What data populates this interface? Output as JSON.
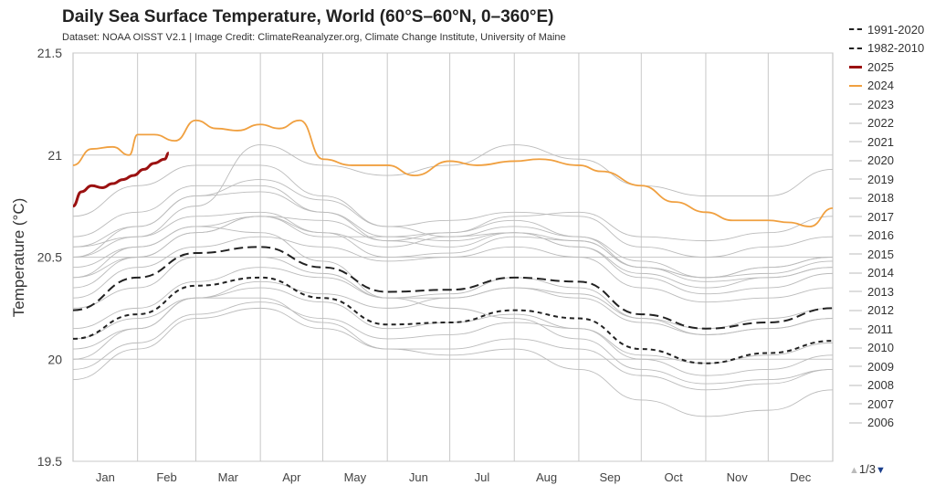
{
  "title": "Daily Sea Surface Temperature, World (60°S–60°N, 0–360°E)",
  "subtitle": "Dataset: NOAA OISST V2.1 | Image Credit: ClimateReanalyzer.org, Climate Change Institute, University of Maine",
  "legend_pager": {
    "label": "1/3",
    "up_icon": "triangle-up-icon",
    "down_icon": "triangle-down-icon"
  },
  "chart_data": {
    "type": "line",
    "ylabel": "Temperature (°C)",
    "ylim": [
      19.5,
      21.5
    ],
    "yticks": [
      "19.5",
      "20",
      "20.5",
      "21",
      "21.5"
    ],
    "xlim": [
      1,
      366
    ],
    "month_labels": [
      "Jan",
      "Feb",
      "Mar",
      "Apr",
      "May",
      "Jun",
      "Jul",
      "Aug",
      "Sep",
      "Oct",
      "Nov",
      "Dec"
    ],
    "grid": true,
    "legend_placement": "right",
    "series": [
      {
        "name": "1991-2020",
        "color": "#222222",
        "style": "long-dash",
        "days": [
          1,
          32,
          60,
          91,
          121,
          152,
          182,
          213,
          244,
          274,
          305,
          335,
          366
        ],
        "values": [
          20.24,
          20.4,
          20.52,
          20.55,
          20.45,
          20.33,
          20.34,
          20.4,
          20.38,
          20.22,
          20.15,
          20.18,
          20.25
        ]
      },
      {
        "name": "1982-2010",
        "color": "#222222",
        "style": "short-dash",
        "days": [
          1,
          32,
          60,
          91,
          121,
          152,
          182,
          213,
          244,
          274,
          305,
          335,
          366
        ],
        "values": [
          20.1,
          20.22,
          20.36,
          20.4,
          20.3,
          20.17,
          20.18,
          20.24,
          20.2,
          20.05,
          19.98,
          20.03,
          20.09
        ]
      },
      {
        "name": "2025",
        "color": "#9b1111",
        "style": "bold",
        "days": [
          1,
          5,
          10,
          15,
          20,
          25,
          30,
          35,
          40,
          45,
          47
        ],
        "values": [
          20.75,
          20.82,
          20.85,
          20.84,
          20.86,
          20.88,
          20.9,
          20.93,
          20.96,
          20.98,
          21.01
        ]
      },
      {
        "name": "2024",
        "color": "#f0a040",
        "style": "solid",
        "days": [
          1,
          10,
          20,
          28,
          32,
          40,
          50,
          60,
          70,
          80,
          91,
          100,
          110,
          121,
          135,
          152,
          165,
          182,
          195,
          213,
          225,
          244,
          255,
          274,
          290,
          305,
          318,
          335,
          345,
          355,
          366
        ],
        "values": [
          20.95,
          21.03,
          21.04,
          21.0,
          21.1,
          21.1,
          21.07,
          21.17,
          21.13,
          21.12,
          21.15,
          21.13,
          21.17,
          20.98,
          20.95,
          20.95,
          20.9,
          20.97,
          20.95,
          20.97,
          20.98,
          20.95,
          20.92,
          20.85,
          20.77,
          20.72,
          20.68,
          20.68,
          20.67,
          20.65,
          20.74
        ]
      },
      {
        "name": "2023",
        "color": "#bbbbbb",
        "style": "thin",
        "days": [
          1,
          32,
          60,
          91,
          121,
          152,
          182,
          213,
          244,
          274,
          305,
          335,
          366
        ],
        "values": [
          20.55,
          20.6,
          20.75,
          21.05,
          20.95,
          20.9,
          20.95,
          21.05,
          20.98,
          20.85,
          20.8,
          20.8,
          20.93
        ]
      },
      {
        "name": "2022",
        "color": "#bbbbbb",
        "style": "thin",
        "days": [
          1,
          32,
          60,
          91,
          121,
          152,
          182,
          213,
          244,
          274,
          305,
          335,
          366
        ],
        "values": [
          20.5,
          20.6,
          20.7,
          20.72,
          20.62,
          20.55,
          20.6,
          20.62,
          20.58,
          20.45,
          20.4,
          20.42,
          20.48
        ]
      },
      {
        "name": "2021",
        "color": "#bbbbbb",
        "style": "thin",
        "days": [
          1,
          32,
          60,
          91,
          121,
          152,
          182,
          213,
          244,
          274,
          305,
          335,
          366
        ],
        "values": [
          20.45,
          20.55,
          20.65,
          20.7,
          20.6,
          20.6,
          20.62,
          20.68,
          20.6,
          20.48,
          20.4,
          20.45,
          20.5
        ]
      },
      {
        "name": "2020",
        "color": "#bbbbbb",
        "style": "thin",
        "days": [
          1,
          32,
          60,
          91,
          121,
          152,
          182,
          213,
          244,
          274,
          305,
          335,
          366
        ],
        "values": [
          20.6,
          20.72,
          20.85,
          20.85,
          20.72,
          20.6,
          20.58,
          20.62,
          20.55,
          20.42,
          20.35,
          20.4,
          20.45
        ]
      },
      {
        "name": "2019",
        "color": "#bbbbbb",
        "style": "thin",
        "days": [
          1,
          32,
          60,
          91,
          121,
          152,
          182,
          213,
          244,
          274,
          305,
          335,
          366
        ],
        "values": [
          20.5,
          20.65,
          20.8,
          20.88,
          20.78,
          20.65,
          20.68,
          20.72,
          20.7,
          20.55,
          20.5,
          20.55,
          20.6
        ]
      },
      {
        "name": "2018",
        "color": "#bbbbbb",
        "style": "thin",
        "days": [
          1,
          32,
          60,
          91,
          121,
          152,
          182,
          213,
          244,
          274,
          305,
          335,
          366
        ],
        "values": [
          20.4,
          20.5,
          20.62,
          20.7,
          20.62,
          20.5,
          20.52,
          20.6,
          20.58,
          20.45,
          20.4,
          20.45,
          20.5
        ]
      },
      {
        "name": "2017",
        "color": "#bbbbbb",
        "style": "thin",
        "days": [
          1,
          32,
          60,
          91,
          121,
          152,
          182,
          213,
          244,
          274,
          305,
          335,
          366
        ],
        "values": [
          20.55,
          20.65,
          20.8,
          20.82,
          20.72,
          20.58,
          20.55,
          20.62,
          20.55,
          20.4,
          20.32,
          20.35,
          20.42
        ]
      },
      {
        "name": "2016",
        "color": "#bbbbbb",
        "style": "thin",
        "days": [
          1,
          32,
          60,
          91,
          121,
          152,
          182,
          213,
          244,
          274,
          305,
          335,
          366
        ],
        "values": [
          20.7,
          20.85,
          20.95,
          20.95,
          20.8,
          20.65,
          20.6,
          20.65,
          20.6,
          20.45,
          20.38,
          20.4,
          20.45
        ]
      },
      {
        "name": "2015",
        "color": "#bbbbbb",
        "style": "thin",
        "days": [
          1,
          32,
          60,
          91,
          121,
          152,
          182,
          213,
          244,
          274,
          305,
          335,
          366
        ],
        "values": [
          20.35,
          20.5,
          20.62,
          20.7,
          20.68,
          20.58,
          20.62,
          20.7,
          20.72,
          20.6,
          20.58,
          20.62,
          20.7
        ]
      },
      {
        "name": "2014",
        "color": "#bbbbbb",
        "style": "thin",
        "days": [
          1,
          32,
          60,
          91,
          121,
          152,
          182,
          213,
          244,
          274,
          305,
          335,
          366
        ],
        "values": [
          20.3,
          20.45,
          20.55,
          20.6,
          20.55,
          20.48,
          20.5,
          20.55,
          20.5,
          20.35,
          20.28,
          20.3,
          20.35
        ]
      },
      {
        "name": "2013",
        "color": "#bbbbbb",
        "style": "thin",
        "days": [
          1,
          32,
          60,
          91,
          121,
          152,
          182,
          213,
          244,
          274,
          305,
          335,
          366
        ],
        "values": [
          20.25,
          20.35,
          20.5,
          20.5,
          20.42,
          20.3,
          20.3,
          20.35,
          20.32,
          20.2,
          20.15,
          20.2,
          20.25
        ]
      },
      {
        "name": "2012",
        "color": "#bbbbbb",
        "style": "thin",
        "days": [
          1,
          32,
          60,
          91,
          121,
          152,
          182,
          213,
          244,
          274,
          305,
          335,
          366
        ],
        "values": [
          20.15,
          20.25,
          20.38,
          20.45,
          20.4,
          20.3,
          20.32,
          20.4,
          20.35,
          20.2,
          20.12,
          20.15,
          20.2
        ]
      },
      {
        "name": "2011",
        "color": "#bbbbbb",
        "style": "thin",
        "days": [
          1,
          32,
          60,
          91,
          121,
          152,
          182,
          213,
          244,
          274,
          305,
          335,
          366
        ],
        "values": [
          20.0,
          20.15,
          20.3,
          20.35,
          20.28,
          20.15,
          20.18,
          20.22,
          20.15,
          20.0,
          19.92,
          19.95,
          20.02
        ]
      },
      {
        "name": "2010",
        "color": "#bbbbbb",
        "style": "thin",
        "days": [
          1,
          32,
          60,
          91,
          121,
          152,
          182,
          213,
          244,
          274,
          305,
          335,
          366
        ],
        "values": [
          20.4,
          20.55,
          20.65,
          20.62,
          20.48,
          20.3,
          20.25,
          20.2,
          20.1,
          19.95,
          19.88,
          19.9,
          19.95
        ]
      },
      {
        "name": "2009",
        "color": "#bbbbbb",
        "style": "thin",
        "days": [
          1,
          32,
          60,
          91,
          121,
          152,
          182,
          213,
          244,
          274,
          305,
          335,
          366
        ],
        "values": [
          20.05,
          20.15,
          20.3,
          20.38,
          20.32,
          20.25,
          20.3,
          20.35,
          20.3,
          20.18,
          20.12,
          20.15,
          20.2
        ]
      },
      {
        "name": "2008",
        "color": "#bbbbbb",
        "style": "thin",
        "days": [
          1,
          32,
          60,
          91,
          121,
          152,
          182,
          213,
          244,
          274,
          305,
          335,
          366
        ],
        "values": [
          19.9,
          20.05,
          20.2,
          20.25,
          20.15,
          20.05,
          20.05,
          20.1,
          20.05,
          19.92,
          19.85,
          19.88,
          19.95
        ]
      },
      {
        "name": "2007",
        "color": "#bbbbbb",
        "style": "thin",
        "days": [
          1,
          32,
          60,
          91,
          121,
          152,
          182,
          213,
          244,
          274,
          305,
          335,
          366
        ],
        "values": [
          20.1,
          20.2,
          20.3,
          20.3,
          20.18,
          20.05,
          20.02,
          20.05,
          19.95,
          19.8,
          19.72,
          19.75,
          19.85
        ]
      },
      {
        "name": "2006",
        "color": "#bbbbbb",
        "style": "thin",
        "days": [
          1,
          32,
          60,
          91,
          121,
          152,
          182,
          213,
          244,
          274,
          305,
          335,
          366
        ],
        "values": [
          19.95,
          20.08,
          20.22,
          20.28,
          20.2,
          20.1,
          20.12,
          20.18,
          20.15,
          20.02,
          19.98,
          20.02,
          20.08
        ]
      }
    ]
  }
}
